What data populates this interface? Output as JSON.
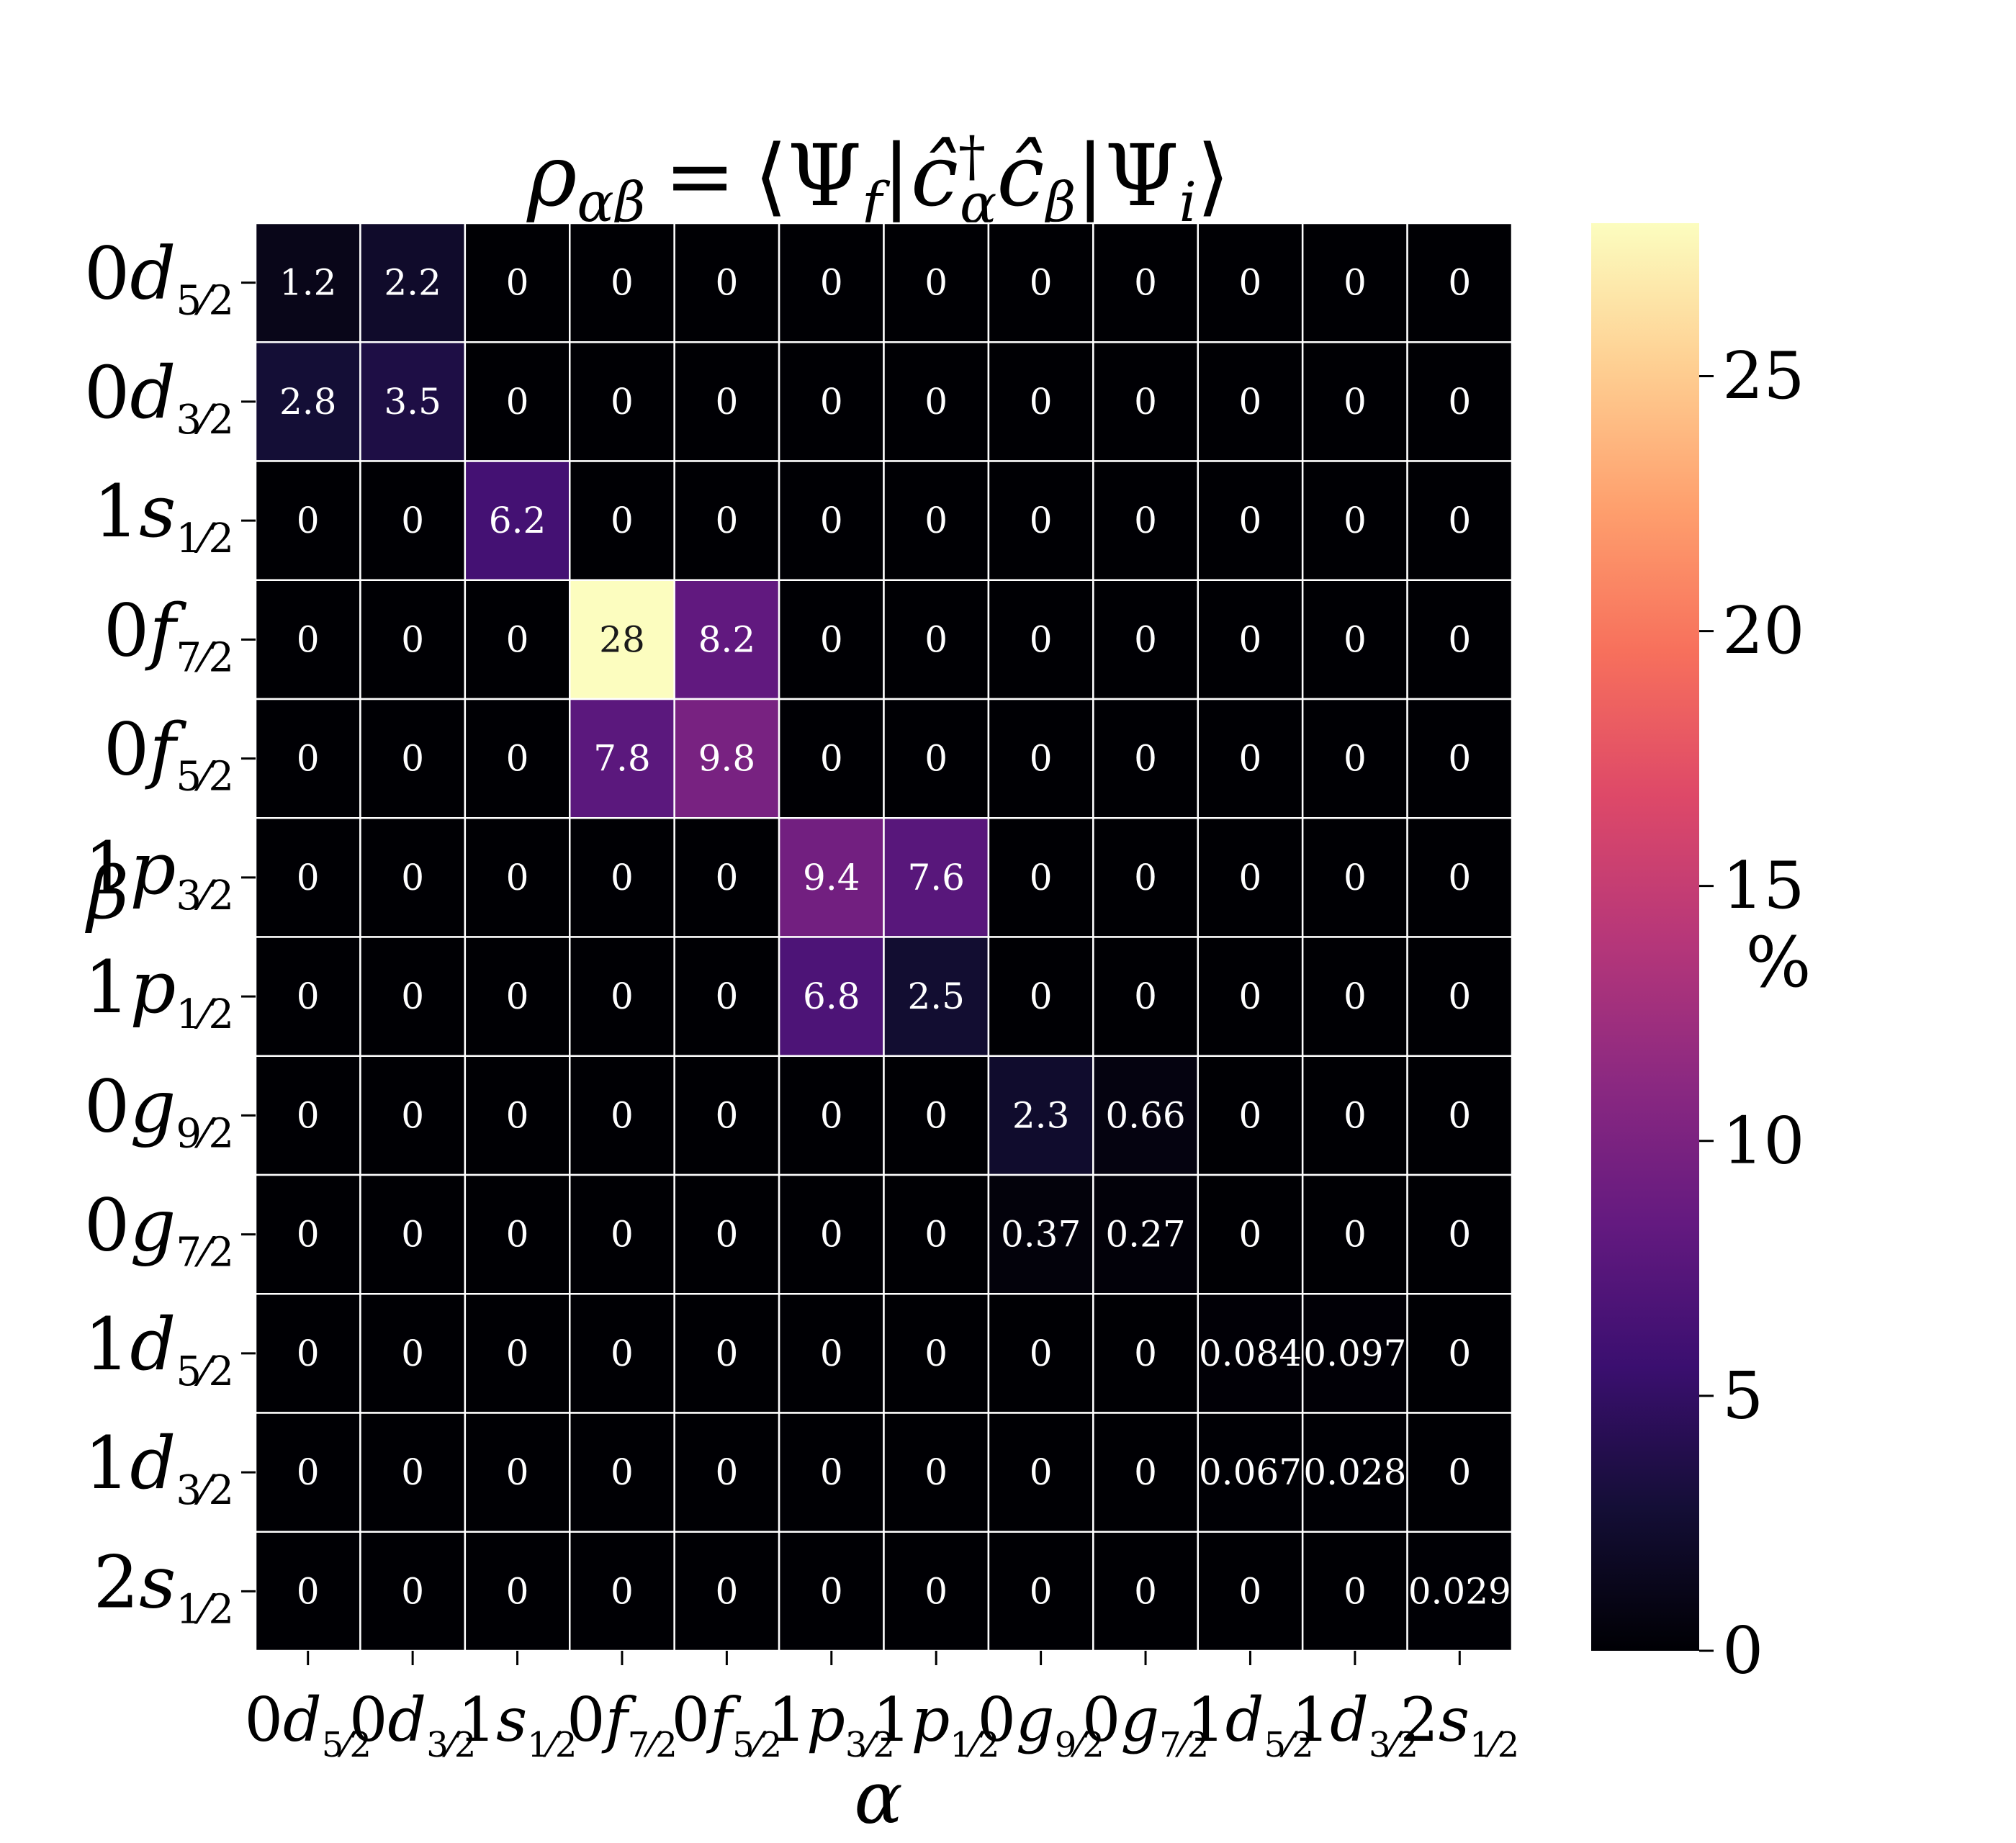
{
  "chart_data": {
    "type": "heatmap",
    "title": "ρ_{αβ} = ⟨Ψ_f|ĉ†_α ĉ_β|Ψ_i⟩",
    "title_parts": {
      "rho": "ρ",
      "sub_ab": "αβ",
      "eq": "=",
      "lang": "⟨",
      "psi": "Ψ",
      "sub_f": "f",
      "bar": "|",
      "c_hat": "ĉ",
      "dagger": "†",
      "sub_a": "α",
      "sub_b": "β",
      "sub_i": "i",
      "rang": "⟩"
    },
    "xlabel": "α",
    "ylabel": "β",
    "colorbar_label": "%",
    "colormap": "magma",
    "vmin": 0,
    "vmax": 28,
    "colorbar_ticks": [
      "0",
      "5",
      "10",
      "15",
      "20",
      "25"
    ],
    "orbitals": [
      {
        "n": "0",
        "l": "d",
        "num": "5",
        "den": "2"
      },
      {
        "n": "0",
        "l": "d",
        "num": "3",
        "den": "2"
      },
      {
        "n": "1",
        "l": "s",
        "num": "1",
        "den": "2"
      },
      {
        "n": "0",
        "l": "f",
        "num": "7",
        "den": "2"
      },
      {
        "n": "0",
        "l": "f",
        "num": "5",
        "den": "2"
      },
      {
        "n": "1",
        "l": "p",
        "num": "3",
        "den": "2"
      },
      {
        "n": "1",
        "l": "p",
        "num": "1",
        "den": "2"
      },
      {
        "n": "0",
        "l": "g",
        "num": "9",
        "den": "2"
      },
      {
        "n": "0",
        "l": "g",
        "num": "7",
        "den": "2"
      },
      {
        "n": "1",
        "l": "d",
        "num": "5",
        "den": "2"
      },
      {
        "n": "1",
        "l": "d",
        "num": "3",
        "den": "2"
      },
      {
        "n": "2",
        "l": "s",
        "num": "1",
        "den": "2"
      }
    ],
    "values": [
      [
        1.2,
        2.2,
        0,
        0,
        0,
        0,
        0,
        0,
        0,
        0,
        0,
        0
      ],
      [
        2.8,
        3.5,
        0,
        0,
        0,
        0,
        0,
        0,
        0,
        0,
        0,
        0
      ],
      [
        0,
        0,
        6.2,
        0,
        0,
        0,
        0,
        0,
        0,
        0,
        0,
        0
      ],
      [
        0,
        0,
        0,
        28,
        8.2,
        0,
        0,
        0,
        0,
        0,
        0,
        0
      ],
      [
        0,
        0,
        0,
        7.8,
        9.8,
        0,
        0,
        0,
        0,
        0,
        0,
        0
      ],
      [
        0,
        0,
        0,
        0,
        0,
        9.4,
        7.6,
        0,
        0,
        0,
        0,
        0
      ],
      [
        0,
        0,
        0,
        0,
        0,
        6.8,
        2.5,
        0,
        0,
        0,
        0,
        0
      ],
      [
        0,
        0,
        0,
        0,
        0,
        0,
        0,
        2.3,
        0.66,
        0,
        0,
        0
      ],
      [
        0,
        0,
        0,
        0,
        0,
        0,
        0,
        0.37,
        0.27,
        0,
        0,
        0
      ],
      [
        0,
        0,
        0,
        0,
        0,
        0,
        0,
        0,
        0,
        0.084,
        0.097,
        0
      ],
      [
        0,
        0,
        0,
        0,
        0,
        0,
        0,
        0,
        0,
        0.067,
        0.028,
        0
      ],
      [
        0,
        0,
        0,
        0,
        0,
        0,
        0,
        0,
        0,
        0,
        0,
        0.029
      ]
    ],
    "annotations": [
      [
        "1.2",
        "2.2",
        "0",
        "0",
        "0",
        "0",
        "0",
        "0",
        "0",
        "0",
        "0",
        "0"
      ],
      [
        "2.8",
        "3.5",
        "0",
        "0",
        "0",
        "0",
        "0",
        "0",
        "0",
        "0",
        "0",
        "0"
      ],
      [
        "0",
        "0",
        "6.2",
        "0",
        "0",
        "0",
        "0",
        "0",
        "0",
        "0",
        "0",
        "0"
      ],
      [
        "0",
        "0",
        "0",
        "28",
        "8.2",
        "0",
        "0",
        "0",
        "0",
        "0",
        "0",
        "0"
      ],
      [
        "0",
        "0",
        "0",
        "7.8",
        "9.8",
        "0",
        "0",
        "0",
        "0",
        "0",
        "0",
        "0"
      ],
      [
        "0",
        "0",
        "0",
        "0",
        "0",
        "9.4",
        "7.6",
        "0",
        "0",
        "0",
        "0",
        "0"
      ],
      [
        "0",
        "0",
        "0",
        "0",
        "0",
        "6.8",
        "2.5",
        "0",
        "0",
        "0",
        "0",
        "0"
      ],
      [
        "0",
        "0",
        "0",
        "0",
        "0",
        "0",
        "0",
        "2.3",
        "0.66",
        "0",
        "0",
        "0"
      ],
      [
        "0",
        "0",
        "0",
        "0",
        "0",
        "0",
        "0",
        "0.37",
        "0.27",
        "0",
        "0",
        "0"
      ],
      [
        "0",
        "0",
        "0",
        "0",
        "0",
        "0",
        "0",
        "0",
        "0",
        "0.084",
        "0.097",
        "0"
      ],
      [
        "0",
        "0",
        "0",
        "0",
        "0",
        "0",
        "0",
        "0",
        "0",
        "0.067",
        "0.028",
        "0"
      ],
      [
        "0",
        "0",
        "0",
        "0",
        "0",
        "0",
        "0",
        "0",
        "0",
        "0",
        "0",
        "0.029"
      ]
    ]
  }
}
